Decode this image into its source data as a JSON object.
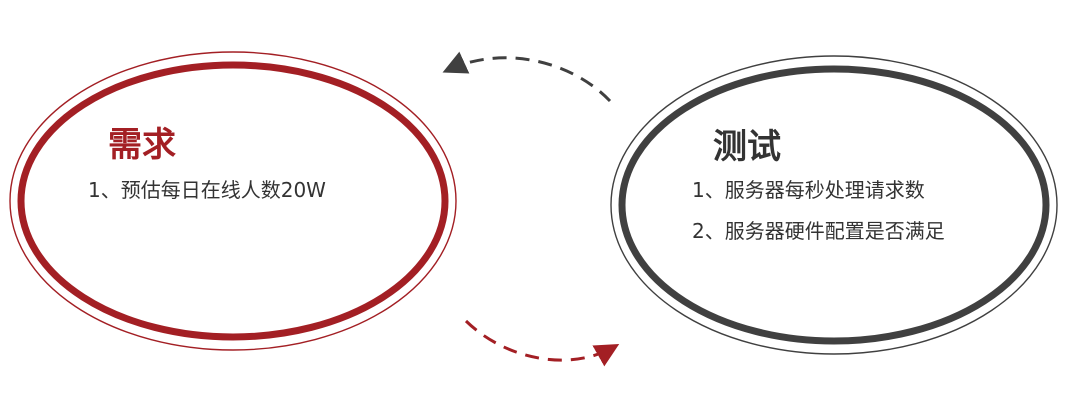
{
  "colors": {
    "requirement": "#a31f24",
    "test": "#404040",
    "text": "#333333"
  },
  "requirement": {
    "title": "需求",
    "items": [
      "1、预估每日在线人数20W"
    ]
  },
  "test": {
    "title": "测试",
    "items": [
      "1、服务器每秒处理请求数",
      "2、服务器硬件配置是否满足"
    ]
  },
  "arrows": {
    "top": {
      "direction": "test-to-requirement",
      "color": "#404040",
      "style": "dashed"
    },
    "bottom": {
      "direction": "requirement-to-test",
      "color": "#a31f24",
      "style": "dashed"
    }
  }
}
